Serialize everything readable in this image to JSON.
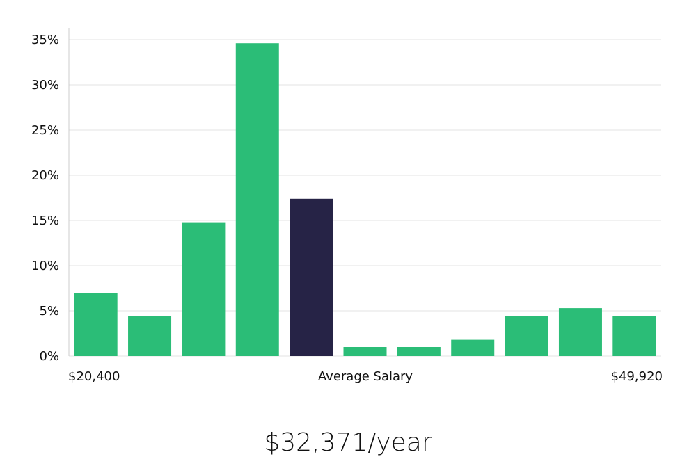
{
  "chart_data": {
    "type": "bar",
    "title": "",
    "x_range_labels": {
      "min": "$20,400",
      "center": "Average Salary",
      "max": "$49,920"
    },
    "values": [
      7,
      4.4,
      14.8,
      34.6,
      17.4,
      1,
      1,
      1.8,
      4.4,
      5.3,
      4.4
    ],
    "highlight_index": 4,
    "ylim": [
      0,
      35
    ],
    "yticks": [
      0,
      5,
      10,
      15,
      20,
      25,
      30,
      35
    ],
    "ytick_labels": [
      "0%",
      "5%",
      "10%",
      "15%",
      "20%",
      "25%",
      "30%",
      "35%"
    ],
    "grid": true,
    "colors": {
      "bar": "#2bbd77",
      "highlight": "#262346",
      "grid": "#e3e3e3",
      "axis": "#cccccc"
    }
  },
  "salary_caption": "$32,371/year"
}
